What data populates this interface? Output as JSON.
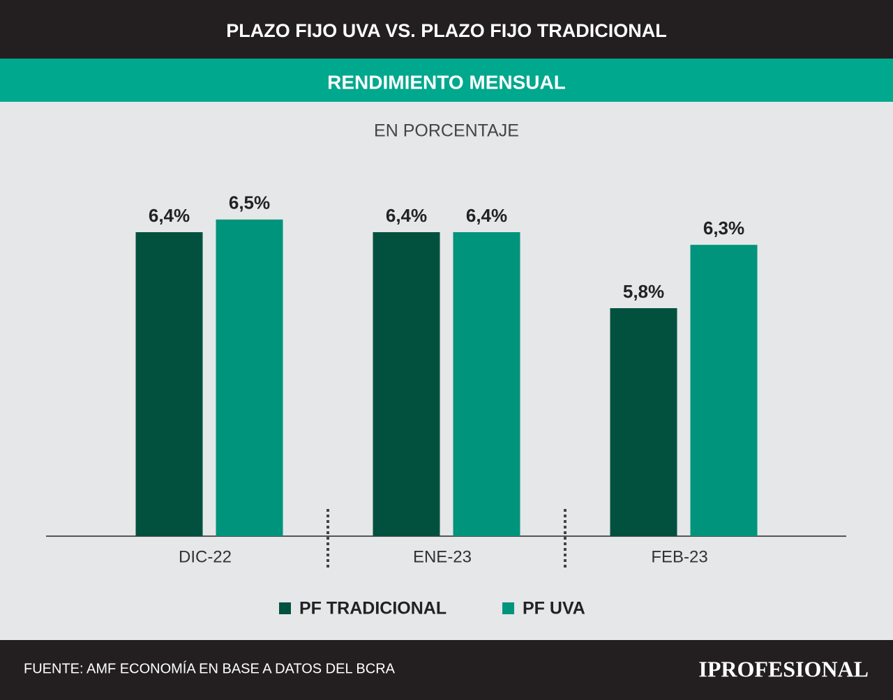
{
  "chart_data": {
    "type": "bar",
    "title": "PLAZO FIJO UVA VS. PLAZO FIJO TRADICIONAL",
    "subtitle": "RENDIMIENTO MENSUAL",
    "unit_label": "EN PORCENTAJE",
    "categories": [
      "DIC-22",
      "ENE-23",
      "FEB-23"
    ],
    "series": [
      {
        "name": "PF TRADICIONAL",
        "color": "#02513f",
        "values": [
          6.4,
          6.4,
          5.8
        ],
        "value_labels": [
          "6,4%",
          "6,4%",
          "5,8%"
        ]
      },
      {
        "name": "PF UVA",
        "color": "#00947c",
        "values": [
          6.5,
          6.4,
          6.3
        ],
        "value_labels": [
          "6,5%",
          "6,4%",
          "6,3%"
        ]
      }
    ],
    "ylim": [
      4,
      7
    ]
  },
  "footer": {
    "source": "FUENTE: AMF ECONOMÍA EN BASE A DATOS DEL BCRA",
    "brand": "IPROFESIONAL"
  }
}
